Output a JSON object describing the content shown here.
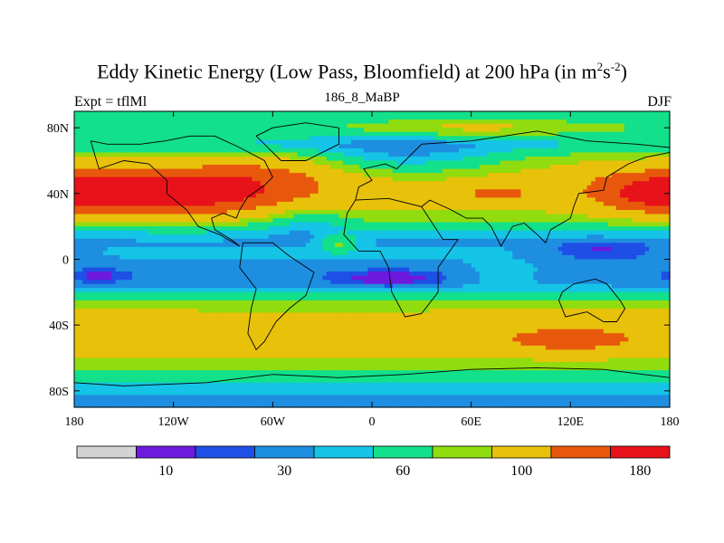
{
  "title": {
    "main": "Eddy Kinetic Energy (Low Pass, Bloomfield) at 200 hPa (in m",
    "units_sup1": "2",
    "units_mid": "s",
    "units_sup2": "-2",
    "units_close": ")",
    "left": "Expt = tflMl",
    "center": "186_8_MaBP",
    "right": "DJF"
  },
  "chart_data": {
    "type": "heatmap",
    "title": "Eddy Kinetic Energy (Low Pass, Bloomfield) at 200 hPa (in m2s-2)",
    "x_range": [
      -180,
      180
    ],
    "y_range": [
      -90,
      90
    ],
    "x_ticks": [
      {
        "value": -180,
        "label": "180"
      },
      {
        "value": -120,
        "label": "120W"
      },
      {
        "value": -60,
        "label": "60W"
      },
      {
        "value": 0,
        "label": "0"
      },
      {
        "value": 60,
        "label": "60E"
      },
      {
        "value": 120,
        "label": "120E"
      },
      {
        "value": 180,
        "label": "180"
      }
    ],
    "y_ticks": [
      {
        "value": 80,
        "label": "80N"
      },
      {
        "value": 40,
        "label": "40N"
      },
      {
        "value": 0,
        "label": "0"
      },
      {
        "value": -40,
        "label": "40S"
      },
      {
        "value": -80,
        "label": "80S"
      }
    ],
    "colors": [
      "#d3d3d3",
      "#6e19de",
      "#1e4fe6",
      "#1e8ee0",
      "#15c4e6",
      "#12e08a",
      "#90dc0f",
      "#e8c10a",
      "#e8580c",
      "#e8121a"
    ],
    "levels": [
      0,
      10,
      20,
      30,
      45,
      60,
      80,
      100,
      140,
      180
    ],
    "colorbar_labels": [
      {
        "after_index": 1,
        "label": "10"
      },
      {
        "after_index": 3,
        "label": "30"
      },
      {
        "after_index": 5,
        "label": "60"
      },
      {
        "after_index": 7,
        "label": "100"
      },
      {
        "after_index": 9,
        "label": "180"
      }
    ],
    "field_components": {
      "background": {
        "lat_profile": [
          [
            90,
            60
          ],
          [
            80,
            80
          ],
          [
            70,
            60
          ],
          [
            60,
            100
          ],
          [
            50,
            120
          ],
          [
            40,
            115
          ],
          [
            30,
            100
          ],
          [
            25,
            90
          ],
          [
            20,
            70
          ],
          [
            15,
            50
          ],
          [
            10,
            42
          ],
          [
            5,
            50
          ],
          [
            0,
            45
          ],
          [
            -5,
            40
          ],
          [
            -10,
            35
          ],
          [
            -15,
            40
          ],
          [
            -20,
            60
          ],
          [
            -25,
            80
          ],
          [
            -30,
            95
          ],
          [
            -35,
            115
          ],
          [
            -40,
            120
          ],
          [
            -45,
            125
          ],
          [
            -50,
            120
          ],
          [
            -55,
            105
          ],
          [
            -60,
            100
          ],
          [
            -65,
            90
          ],
          [
            -70,
            75
          ],
          [
            -75,
            60
          ],
          [
            -80,
            55
          ],
          [
            -85,
            35
          ],
          [
            -90,
            30
          ]
        ]
      },
      "blobs": [
        {
          "lon": -110,
          "lat": 40,
          "dlon": 70,
          "dlat": 14,
          "amp": 95
        },
        {
          "lon": -60,
          "lat": 55,
          "dlon": 45,
          "dlat": 10,
          "amp": 25
        },
        {
          "lon": 175,
          "lat": 40,
          "dlon": 40,
          "dlat": 12,
          "amp": 80
        },
        {
          "lon": -40,
          "lat": 25,
          "dlon": 30,
          "dlat": 10,
          "amp": -30
        },
        {
          "lon": 75,
          "lat": 40,
          "dlon": 25,
          "dlat": 6,
          "amp": 40
        },
        {
          "lon": 20,
          "lat": 60,
          "dlon": 70,
          "dlat": 14,
          "amp": -45
        },
        {
          "lon": 60,
          "lat": 80,
          "dlon": 60,
          "dlat": 6,
          "amp": 30
        },
        {
          "lon": 140,
          "lat": 5,
          "dlon": 40,
          "dlat": 6,
          "amp": -30
        },
        {
          "lon": -165,
          "lat": -10,
          "dlon": 20,
          "dlat": 5,
          "amp": -20
        },
        {
          "lon": 10,
          "lat": -12,
          "dlon": 35,
          "dlat": 6,
          "amp": -25
        },
        {
          "lon": -20,
          "lat": 10,
          "dlon": 12,
          "dlat": 6,
          "amp": 40
        },
        {
          "lon": 120,
          "lat": -50,
          "dlon": 35,
          "dlat": 7,
          "amp": 50
        },
        {
          "lon": 80,
          "lat": -10,
          "dlon": 25,
          "dlat": 8,
          "amp": 15
        }
      ]
    },
    "coastlines": [
      [
        [
          -170,
          72
        ],
        [
          -160,
          70
        ],
        [
          -140,
          70
        ],
        [
          -125,
          72
        ],
        [
          -110,
          75
        ],
        [
          -95,
          75
        ],
        [
          -80,
          68
        ],
        [
          -65,
          60
        ],
        [
          -60,
          50
        ],
        [
          -65,
          45
        ],
        [
          -75,
          38
        ],
        [
          -80,
          30
        ],
        [
          -82,
          25
        ],
        [
          -90,
          28
        ],
        [
          -97,
          25
        ],
        [
          -95,
          18
        ],
        [
          -85,
          12
        ],
        [
          -80,
          8
        ],
        [
          -92,
          15
        ],
        [
          -105,
          20
        ],
        [
          -112,
          30
        ],
        [
          -124,
          40
        ],
        [
          -124,
          48
        ],
        [
          -135,
          58
        ],
        [
          -150,
          60
        ],
        [
          -165,
          55
        ],
        [
          -168,
          65
        ],
        [
          -170,
          72
        ]
      ],
      [
        [
          -78,
          10
        ],
        [
          -60,
          10
        ],
        [
          -50,
          2
        ],
        [
          -35,
          -8
        ],
        [
          -40,
          -22
        ],
        [
          -50,
          -30
        ],
        [
          -58,
          -38
        ],
        [
          -65,
          -50
        ],
        [
          -70,
          -55
        ],
        [
          -75,
          -45
        ],
        [
          -73,
          -30
        ],
        [
          -70,
          -18
        ],
        [
          -80,
          -5
        ],
        [
          -78,
          10
        ]
      ],
      [
        [
          -10,
          36
        ],
        [
          10,
          37
        ],
        [
          30,
          32
        ],
        [
          43,
          12
        ],
        [
          52,
          12
        ],
        [
          40,
          -5
        ],
        [
          40,
          -20
        ],
        [
          30,
          -33
        ],
        [
          20,
          -35
        ],
        [
          12,
          -20
        ],
        [
          10,
          -5
        ],
        [
          5,
          5
        ],
        [
          -8,
          5
        ],
        [
          -17,
          15
        ],
        [
          -15,
          28
        ],
        [
          -10,
          36
        ]
      ],
      [
        [
          -10,
          36
        ],
        [
          -8,
          44
        ],
        [
          0,
          48
        ],
        [
          -5,
          55
        ],
        [
          8,
          58
        ],
        [
          15,
          55
        ],
        [
          20,
          60
        ],
        [
          30,
          70
        ],
        [
          60,
          72
        ],
        [
          80,
          75
        ],
        [
          100,
          78
        ],
        [
          130,
          72
        ],
        [
          160,
          70
        ],
        [
          180,
          68
        ]
      ],
      [
        [
          30,
          32
        ],
        [
          35,
          36
        ],
        [
          48,
          30
        ],
        [
          57,
          25
        ],
        [
          67,
          25
        ],
        [
          72,
          20
        ],
        [
          78,
          8
        ],
        [
          85,
          20
        ],
        [
          92,
          22
        ],
        [
          100,
          15
        ],
        [
          105,
          10
        ],
        [
          108,
          18
        ],
        [
          120,
          25
        ],
        [
          122,
          32
        ],
        [
          125,
          40
        ],
        [
          140,
          42
        ],
        [
          142,
          50
        ],
        [
          155,
          58
        ],
        [
          165,
          62
        ],
        [
          180,
          65
        ]
      ],
      [
        [
          115,
          -20
        ],
        [
          122,
          -15
        ],
        [
          135,
          -12
        ],
        [
          142,
          -15
        ],
        [
          150,
          -25
        ],
        [
          153,
          -30
        ],
        [
          148,
          -38
        ],
        [
          140,
          -38
        ],
        [
          130,
          -32
        ],
        [
          117,
          -35
        ],
        [
          113,
          -25
        ],
        [
          115,
          -20
        ]
      ],
      [
        [
          -180,
          -75
        ],
        [
          -150,
          -77
        ],
        [
          -100,
          -75
        ],
        [
          -60,
          -70
        ],
        [
          -20,
          -72
        ],
        [
          20,
          -70
        ],
        [
          60,
          -67
        ],
        [
          100,
          -66
        ],
        [
          140,
          -67
        ],
        [
          180,
          -72
        ]
      ],
      [
        [
          -55,
          60
        ],
        [
          -40,
          60
        ],
        [
          -20,
          70
        ],
        [
          -20,
          80
        ],
        [
          -40,
          83
        ],
        [
          -60,
          80
        ],
        [
          -70,
          75
        ],
        [
          -55,
          60
        ]
      ]
    ]
  }
}
